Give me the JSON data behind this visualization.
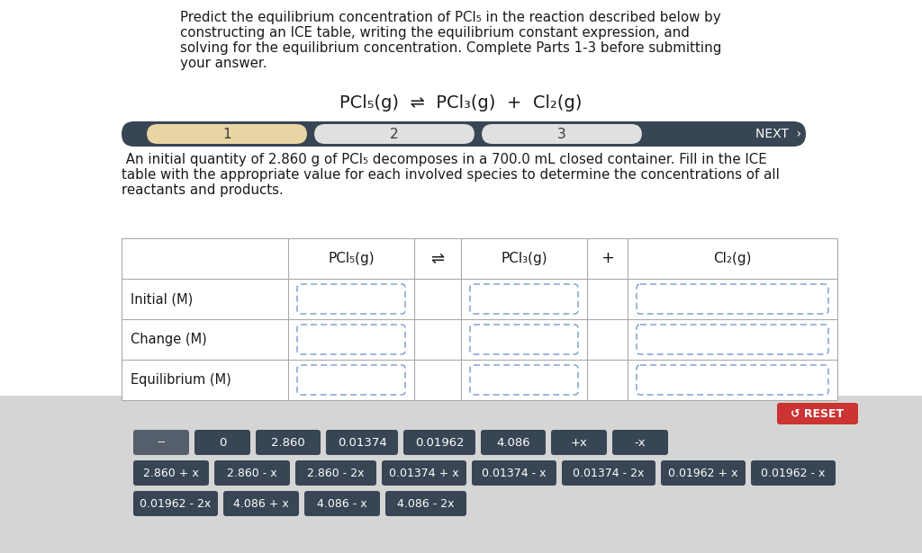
{
  "title_line1": "Predict the equilibrium concentration of PCl",
  "title_line1_sub": "5",
  "title_rest": " in the reaction described below by",
  "title_lines": [
    "Predict the equilibrium concentration of PCl₅ in the reaction described below by",
    "constructing an ICE table, writing the equilibrium constant expression, and",
    "solving for the equilibrium concentration. Complete Parts 1-3 before submitting",
    "your answer."
  ],
  "equation": "PCl₅(g) ⇌ PCl₃(g) + Cl₂(g)",
  "nav_bg": "#384554",
  "nav_step1_color": "#e8d5a3",
  "nav_step2_color": "#e0e0e0",
  "nav_step3_color": "#e0e0e0",
  "nav_text_color": "#3a4454",
  "description_lines": [
    " An initial quantity of 2.860 g of PCl₅ decomposes in a 700.0 mL closed container. Fill in the ICE",
    "table with the appropriate value for each involved species to determine the concentrations of all",
    "reactants and products."
  ],
  "table_header": [
    "PCl₅(g)",
    "⇌",
    "PCl₃(g)",
    "+",
    "Cl₂(g)"
  ],
  "table_rows": [
    "Initial (M)",
    "Change (M)",
    "Equilibrium (M)"
  ],
  "white_bg": "#ffffff",
  "panel_bg": "#d5d5d5",
  "button_dark1": "#555e6b",
  "button_dark2": "#384554",
  "button_text_light": "#ffffff",
  "reset_color": "#cc3333",
  "reset_text": "↺ RESET",
  "button_row1": [
    "--",
    "0",
    "2.860",
    "0.01374",
    "0.01962",
    "4.086",
    "+x",
    "-x"
  ],
  "button_row2": [
    "2.860 + x",
    "2.860 - x",
    "2.860 - 2x",
    "0.01374 + x",
    "0.01374 - x",
    "0.01374 - 2x",
    "0.01962 + x",
    "0.01962 - x"
  ],
  "button_row3": [
    "0.01962 - 2x",
    "4.086 + x",
    "4.086 - x",
    "4.086 - 2x"
  ]
}
